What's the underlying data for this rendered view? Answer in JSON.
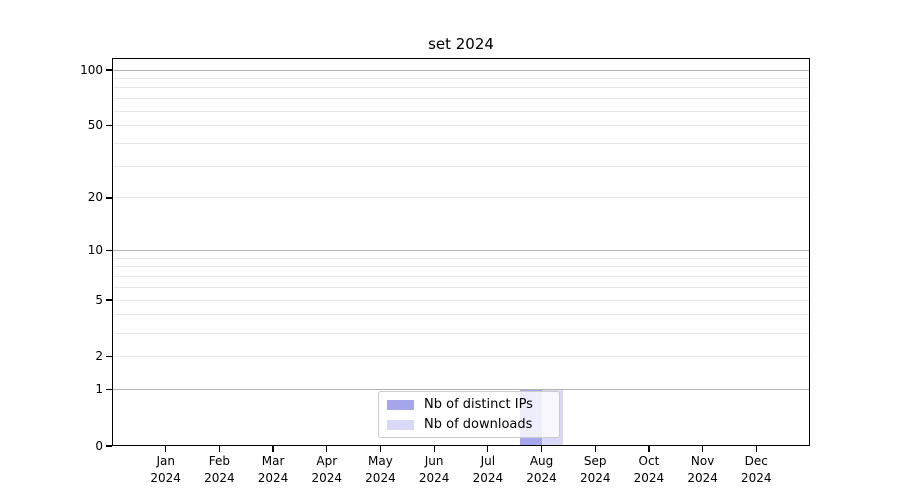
{
  "figure": {
    "title": "set 2024"
  },
  "chart_data": {
    "type": "bar",
    "title": "set 2024",
    "categories": [
      "Jan",
      "Feb",
      "Mar",
      "Apr",
      "May",
      "Jun",
      "Jul",
      "Aug",
      "Sep",
      "Oct",
      "Nov",
      "Dec"
    ],
    "category_year": "2024",
    "series": [
      {
        "name": "Nb of distinct IPs",
        "color": "#a6a6ec",
        "values": [
          0,
          0,
          0,
          0,
          0,
          0,
          0,
          1,
          0,
          0,
          0,
          0
        ]
      },
      {
        "name": "Nb of downloads",
        "color": "#d9d9f7",
        "values": [
          0,
          0,
          0,
          0,
          0,
          0,
          0,
          1,
          0,
          0,
          0,
          0
        ]
      }
    ],
    "xlabel": "",
    "ylabel": "",
    "yscale": "log1p",
    "ylim": [
      0,
      117
    ],
    "y_ticks": [
      0,
      1,
      2,
      5,
      10,
      20,
      50,
      100
    ],
    "y_major_gridlines": [
      1,
      10,
      100
    ],
    "y_minor_gridlines": [
      2,
      3,
      4,
      5,
      6,
      7,
      8,
      9,
      20,
      30,
      40,
      50,
      60,
      70,
      80,
      90
    ],
    "grid": "horizontal",
    "legend": {
      "position": "lower center",
      "entries": [
        "Nb of distinct IPs",
        "Nb of downloads"
      ]
    },
    "colors": {
      "major_grid": "#b3b3b3",
      "minor_grid": "#e8e8e8",
      "axis": "#000000",
      "text": "#000000",
      "legend_border": "#cccccc"
    }
  }
}
